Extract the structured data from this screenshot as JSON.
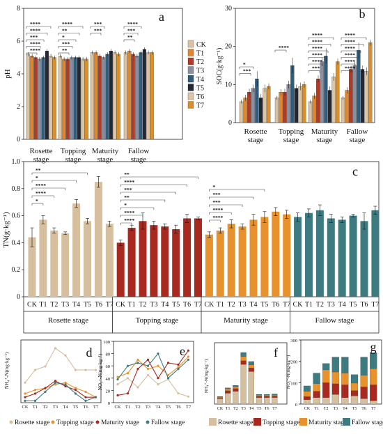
{
  "palette": {
    "CK": "#d9c3a3",
    "T1": "#e0862f",
    "T2": "#b43a24",
    "T3": "#8b8fa0",
    "T4": "#2f5d7c",
    "T5": "#232736",
    "T6": "#dcc5a5",
    "T7": "#d9902c"
  },
  "stage_colors": {
    "rosette": "#d5bf9f",
    "topping": "#a8291f",
    "maturity": "#e8922d",
    "fallow": "#3e7b80"
  },
  "chart_data": [
    {
      "panel": "a",
      "type": "bar",
      "ylabel": "pH",
      "ylim": [
        0,
        8
      ],
      "yticks": [
        0,
        2,
        4,
        6,
        8
      ],
      "categories": [
        "Rosette stage",
        "Topping stage",
        "Maturity stage",
        "Fallow stage"
      ],
      "category_lines": [
        [
          "Rosette",
          "stage"
        ],
        [
          "Topping",
          "stage"
        ],
        [
          "Maturity",
          "stage"
        ],
        [
          "Fallow",
          "stage"
        ]
      ],
      "legend": [
        "CK",
        "T1",
        "T2",
        "T3",
        "T4",
        "T5",
        "T6",
        "T7"
      ],
      "values": [
        [
          5.2,
          5.1,
          5.0,
          4.9,
          5.0,
          5.4,
          5.1,
          5.0
        ],
        [
          5.1,
          4.9,
          4.9,
          5.0,
          5.0,
          5.0,
          4.9,
          4.9
        ],
        [
          5.3,
          5.3,
          5.1,
          5.0,
          5.2,
          5.4,
          5.3,
          5.2
        ],
        [
          5.3,
          5.4,
          5.2,
          5.1,
          5.3,
          5.5,
          5.3,
          5.3
        ]
      ],
      "sig": [
        [
          "****",
          "****",
          "***",
          "****",
          "****"
        ],
        [
          "****",
          "**",
          "*",
          "***",
          "**"
        ],
        [
          "***",
          "***"
        ],
        [
          "****",
          "***",
          "**"
        ]
      ]
    },
    {
      "panel": "b",
      "type": "bar",
      "ylabel": "SOC(g·kg⁻¹)",
      "ylim": [
        0,
        30
      ],
      "yticks": [
        0,
        10,
        20,
        30
      ],
      "categories": [
        "Rosette stage",
        "Topping stage",
        "Maturity stage",
        "Fallow stage"
      ],
      "category_lines": [
        [
          "Rosette",
          "stage"
        ],
        [
          "Topping",
          "stage"
        ],
        [
          "Maturity",
          "stage"
        ],
        [
          "Fallow",
          "stage"
        ]
      ],
      "values": [
        [
          5.5,
          6.5,
          8.0,
          9.0,
          11.5,
          6.5,
          9.0,
          9.5
        ],
        [
          6.5,
          8.0,
          8.0,
          10.0,
          15.0,
          9.0,
          9.5,
          10.0
        ],
        [
          5.5,
          7.0,
          11.5,
          16.0,
          17.5,
          8.5,
          12.0,
          16.0
        ],
        [
          6.5,
          8.5,
          14.0,
          15.0,
          19.0,
          14.0,
          13.5,
          21.0
        ]
      ],
      "errors": [
        0.5,
        0.8,
        0.9,
        1.0,
        2.0,
        1.0,
        1.0,
        0.8
      ],
      "sig": [
        [
          "*",
          "***"
        ],
        [
          "****"
        ],
        [
          "****",
          "****",
          "****",
          "****",
          "****",
          "***"
        ],
        [
          "****",
          "****",
          "****",
          "****",
          "****",
          "****"
        ]
      ]
    },
    {
      "panel": "c",
      "type": "bar",
      "ylabel": "TN(g·kg⁻¹)",
      "ylim": [
        0,
        1.0
      ],
      "yticks": [
        0,
        0.2,
        0.4,
        0.6,
        0.8,
        1.0
      ],
      "ytick_labels": [
        "0",
        "0.2",
        "0.4",
        "0.6",
        "0.8",
        "1.0"
      ],
      "treatments": [
        "CK",
        "T1",
        "T2",
        "T3",
        "T4",
        "T5",
        "T6",
        "T7"
      ],
      "stages": [
        "Rosette stage",
        "Topping stage",
        "Maturity stage",
        "Fallow stage"
      ],
      "values": [
        [
          0.44,
          0.57,
          0.49,
          0.47,
          0.69,
          0.56,
          0.85,
          0.54
        ],
        [
          0.4,
          0.51,
          0.56,
          0.53,
          0.52,
          0.5,
          0.58,
          0.58
        ],
        [
          0.46,
          0.49,
          0.54,
          0.52,
          0.57,
          0.59,
          0.63,
          0.61
        ],
        [
          0.59,
          0.62,
          0.64,
          0.58,
          0.57,
          0.6,
          0.56,
          0.64
        ]
      ],
      "errors": [
        [
          0.07,
          0.03,
          0.02,
          0.01,
          0.03,
          0.02,
          0.04,
          0.02
        ],
        [
          0.02,
          0.02,
          0.06,
          0.03,
          0.02,
          0.03,
          0.03,
          0.01
        ],
        [
          0.02,
          0.02,
          0.03,
          0.02,
          0.04,
          0.04,
          0.03,
          0.03
        ],
        [
          0.03,
          0.03,
          0.04,
          0.03,
          0.02,
          0.01,
          0.06,
          0.03
        ]
      ],
      "sig": [
        [
          "**",
          "*",
          "****",
          "****",
          "*"
        ],
        [
          "**",
          "****",
          "***",
          "**",
          "*",
          "****",
          "****"
        ],
        [
          "*",
          "***",
          "***",
          "****",
          "****"
        ],
        []
      ]
    },
    {
      "panel": "d",
      "type": "line",
      "ylabel": "NH₄⁺-N(mg·kg⁻¹)",
      "x": [
        "CK",
        "T1",
        "T2",
        "T3",
        "T4",
        "T5",
        "T6",
        "T7"
      ],
      "series": [
        {
          "name": "Rosette stage",
          "values": [
            1.1,
            1.8,
            2.0,
            3.0,
            2.6,
            1.8,
            1.8,
            1.8
          ]
        },
        {
          "name": "Topping stage",
          "values": [
            0.5,
            0.7,
            0.8,
            1.0,
            1.1,
            0.8,
            0.6,
            0.3
          ]
        },
        {
          "name": "Maturity stage",
          "values": [
            0.3,
            0.5,
            0.8,
            1.2,
            0.9,
            0.7,
            0.3,
            0.3
          ]
        },
        {
          "name": "Fallow stage",
          "values": [
            0.1,
            0.1,
            0.6,
            1.1,
            1.0,
            0.5,
            0.1,
            0.3
          ]
        }
      ]
    },
    {
      "panel": "e",
      "type": "line",
      "ylabel": "NO₃⁻-N(mg·kg⁻¹)",
      "ylim": [
        0,
        100
      ],
      "yticks": [
        0,
        20,
        40,
        60,
        80,
        100
      ],
      "x": [
        "CK",
        "T1",
        "T2",
        "T3",
        "T4",
        "T5",
        "T6",
        "T7"
      ],
      "series": [
        {
          "name": "Rosette stage",
          "values": [
            30,
            40,
            25,
            45,
            30,
            38,
            15,
            10
          ]
        },
        {
          "name": "Topping stage",
          "values": [
            42,
            48,
            70,
            55,
            60,
            45,
            58,
            75
          ]
        },
        {
          "name": "Maturity stage",
          "values": [
            12,
            15,
            55,
            70,
            40,
            65,
            62,
            85
          ]
        },
        {
          "name": "Fallow stage",
          "values": [
            38,
            60,
            65,
            60,
            80,
            40,
            55,
            70
          ]
        }
      ]
    },
    {
      "panel": "f",
      "type": "bar",
      "ylabel": "NH₄⁺-N(mg·kg⁻¹)",
      "categories": [
        "CK",
        "T1",
        "T2",
        "T3",
        "T4",
        "T5",
        "T6",
        "T7"
      ],
      "series": [
        {
          "name": "Rosette stage",
          "values": [
            1.5,
            3.0,
            3.5,
            11.0,
            9.0,
            1.8,
            1.8,
            1.8
          ]
        },
        {
          "name": "Topping stage",
          "values": [
            0.3,
            0.7,
            0.8,
            1.0,
            1.0,
            0.4,
            0.4,
            0.4
          ]
        },
        {
          "name": "Maturity stage",
          "values": [
            0.2,
            0.5,
            0.5,
            1.2,
            0.9,
            0.3,
            0.3,
            0.3
          ]
        },
        {
          "name": "Fallow stage",
          "values": [
            0.1,
            0.3,
            0.4,
            1.1,
            0.9,
            0.2,
            0.2,
            0.3
          ]
        }
      ],
      "ymax": 17
    },
    {
      "panel": "g",
      "type": "bar",
      "ylabel": "NO₃⁻-N(mg·kg⁻¹)",
      "ylim": [
        0,
        300
      ],
      "yticks": [
        0,
        100,
        200,
        300
      ],
      "categories": [
        "CK",
        "T1",
        "T2",
        "T3",
        "T4",
        "T5",
        "T6",
        "T7"
      ],
      "series": [
        {
          "name": "Rosette stage",
          "values": [
            20,
            30,
            30,
            45,
            30,
            38,
            25,
            15
          ]
        },
        {
          "name": "Topping stage",
          "values": [
            15,
            30,
            70,
            50,
            60,
            25,
            55,
            75
          ]
        },
        {
          "name": "Maturity stage",
          "values": [
            25,
            35,
            60,
            55,
            55,
            35,
            55,
            75
          ]
        },
        {
          "name": "Fallow stage",
          "values": [
            25,
            50,
            30,
            70,
            75,
            40,
            85,
            75
          ]
        }
      ]
    }
  ],
  "panel_letters": {
    "a": "a",
    "b": "b",
    "c": "c",
    "d": "d",
    "e": "e",
    "f": "f",
    "g": "g"
  },
  "bottom_legend": [
    "Rosette stage",
    "Topping stage",
    "Maturity stage",
    "Fallow stage"
  ]
}
